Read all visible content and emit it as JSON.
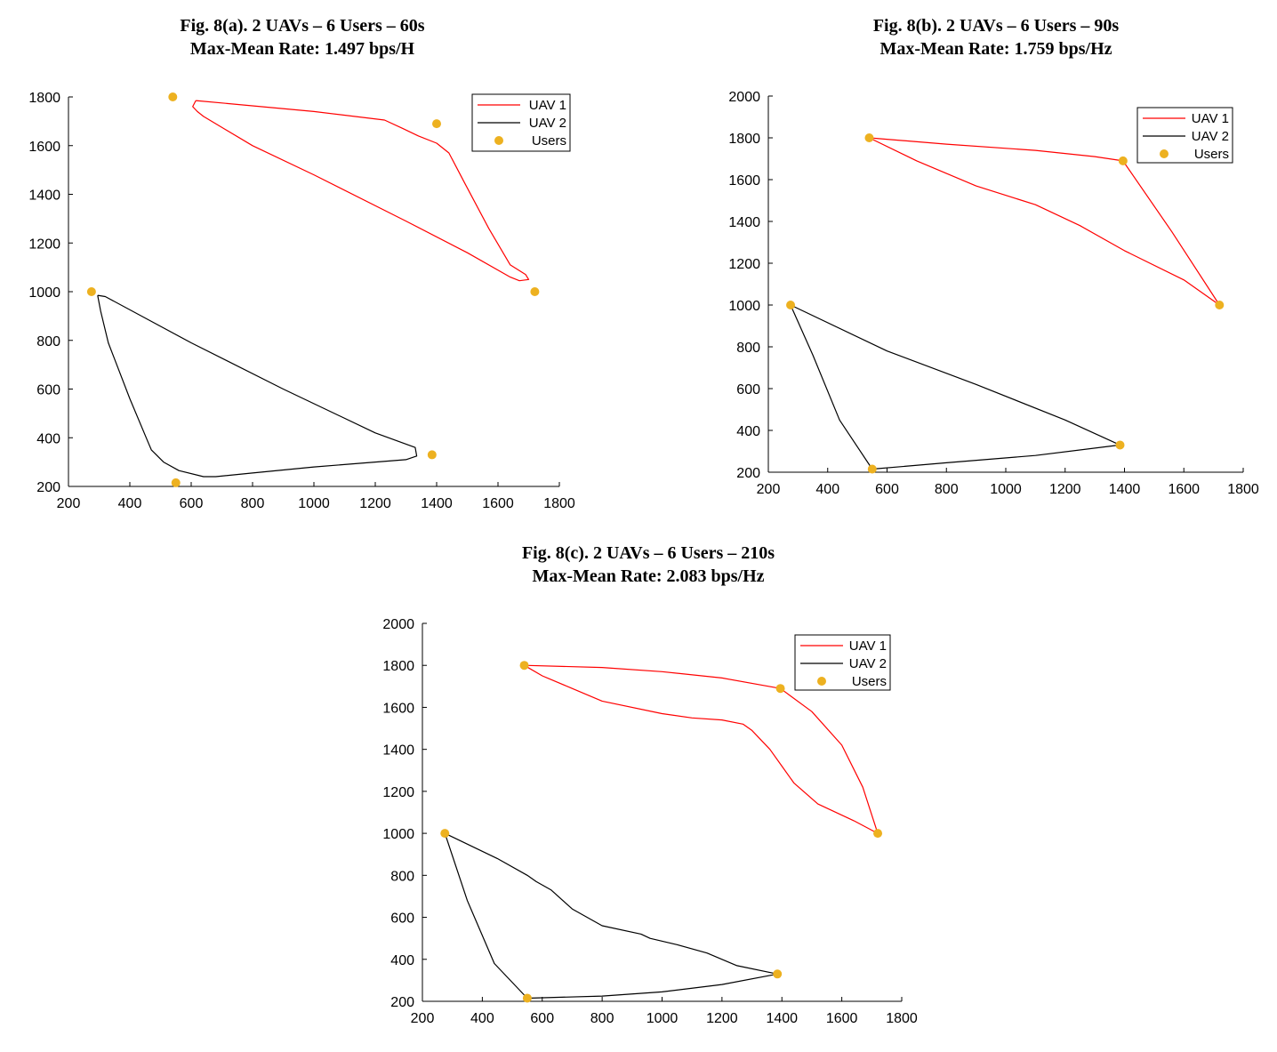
{
  "chart_data": [
    {
      "type": "line",
      "title_line1": "Fig. 8(a). 2 UAVs – 6 Users – 60s",
      "title_line2": "Max-Mean Rate: 1.497 bps/H",
      "xlim": [
        200,
        1800
      ],
      "ylim": [
        200,
        1800
      ],
      "xticks": [
        "200",
        "400",
        "600",
        "800",
        "1000",
        "1200",
        "1400",
        "1600",
        "1800"
      ],
      "yticks": [
        "200",
        "400",
        "600",
        "800",
        "1000",
        "1200",
        "1400",
        "1600",
        "1800"
      ],
      "grid": false,
      "legend": "top-right",
      "series": [
        {
          "name": "UAV 1",
          "color": "#ff0000",
          "x": [
            615,
            1000,
            1230,
            1290,
            1340,
            1400,
            1440,
            1490,
            1570,
            1640,
            1690,
            1700,
            1670,
            1640,
            1500,
            1300,
            1000,
            800,
            640,
            620,
            605,
            615
          ],
          "y": [
            1785,
            1740,
            1705,
            1670,
            1640,
            1610,
            1570,
            1450,
            1260,
            1110,
            1070,
            1050,
            1045,
            1060,
            1160,
            1290,
            1480,
            1600,
            1720,
            1740,
            1760,
            1785
          ]
        },
        {
          "name": "UAV 2",
          "color": "#000000",
          "x": [
            295,
            320,
            600,
            900,
            1200,
            1330,
            1335,
            1300,
            1000,
            800,
            680,
            640,
            560,
            510,
            470,
            460,
            400,
            330,
            305,
            295
          ],
          "y": [
            985,
            980,
            790,
            600,
            420,
            360,
            325,
            310,
            280,
            255,
            240,
            240,
            265,
            300,
            350,
            380,
            560,
            790,
            920,
            985
          ]
        },
        {
          "name": "Users",
          "color": "#edb120",
          "x": [
            540,
            1400,
            1720,
            275,
            1385,
            550
          ],
          "y": [
            1800,
            1690,
            1000,
            1000,
            330,
            215
          ]
        }
      ]
    },
    {
      "type": "line",
      "title_line1": "Fig. 8(b). 2 UAVs – 6 Users – 90s",
      "title_line2": "Max-Mean Rate: 1.759 bps/Hz",
      "xlim": [
        200,
        1800
      ],
      "ylim": [
        200,
        2000
      ],
      "xticks": [
        "200",
        "400",
        "600",
        "800",
        "1000",
        "1200",
        "1400",
        "1600",
        "1800"
      ],
      "yticks": [
        "200",
        "400",
        "600",
        "800",
        "1000",
        "1200",
        "1400",
        "1600",
        "1800",
        "2000"
      ],
      "grid": false,
      "legend": "top-right",
      "series": [
        {
          "name": "UAV 1",
          "color": "#ff0000",
          "x": [
            540,
            800,
            1100,
            1300,
            1395,
            1560,
            1720,
            1600,
            1400,
            1250,
            1100,
            900,
            700,
            540
          ],
          "y": [
            1800,
            1770,
            1740,
            1710,
            1690,
            1350,
            1000,
            1120,
            1260,
            1380,
            1480,
            1570,
            1690,
            1800
          ],
          "close": true
        },
        {
          "name": "UAV 2",
          "color": "#000000",
          "x": [
            275,
            600,
            900,
            1200,
            1385,
            1100,
            800,
            550,
            440,
            350,
            275
          ],
          "y": [
            1000,
            780,
            620,
            450,
            330,
            280,
            245,
            215,
            450,
            760,
            1000
          ]
        },
        {
          "name": "Users",
          "color": "#edb120",
          "x": [
            540,
            1395,
            1720,
            275,
            1385,
            550
          ],
          "y": [
            1800,
            1690,
            1000,
            1000,
            330,
            215
          ]
        }
      ]
    },
    {
      "type": "line",
      "title_line1": "Fig. 8(c). 2 UAVs – 6 Users – 210s",
      "title_line2": "Max-Mean Rate: 2.083 bps/Hz",
      "xlim": [
        200,
        1800
      ],
      "ylim": [
        200,
        2000
      ],
      "xticks": [
        "200",
        "400",
        "600",
        "800",
        "1000",
        "1200",
        "1400",
        "1600",
        "1800"
      ],
      "yticks": [
        "200",
        "400",
        "600",
        "800",
        "1000",
        "1200",
        "1400",
        "1600",
        "1800",
        "2000"
      ],
      "grid": false,
      "legend": "top-right",
      "series": [
        {
          "name": "UAV 1",
          "color": "#ff0000",
          "x": [
            540,
            800,
            1000,
            1200,
            1395,
            1500,
            1600,
            1670,
            1720,
            1640,
            1520,
            1440,
            1400,
            1360,
            1300,
            1270,
            1200,
            1100,
            1000,
            800,
            700,
            600,
            540
          ],
          "y": [
            1800,
            1790,
            1770,
            1740,
            1690,
            1580,
            1420,
            1220,
            1000,
            1060,
            1140,
            1240,
            1320,
            1400,
            1490,
            1520,
            1540,
            1550,
            1570,
            1630,
            1690,
            1750,
            1800
          ],
          "close": true
        },
        {
          "name": "UAV 2",
          "color": "#000000",
          "x": [
            275,
            450,
            550,
            580,
            630,
            700,
            800,
            930,
            960,
            1050,
            1150,
            1250,
            1385,
            1200,
            1000,
            800,
            550,
            440,
            350,
            275
          ],
          "y": [
            1000,
            880,
            800,
            770,
            730,
            640,
            560,
            520,
            500,
            470,
            430,
            370,
            330,
            280,
            245,
            225,
            215,
            380,
            680,
            1000
          ]
        },
        {
          "name": "Users",
          "color": "#edb120",
          "x": [
            540,
            1395,
            1720,
            275,
            1385,
            550
          ],
          "y": [
            1800,
            1690,
            1000,
            1000,
            330,
            215
          ]
        }
      ]
    }
  ]
}
